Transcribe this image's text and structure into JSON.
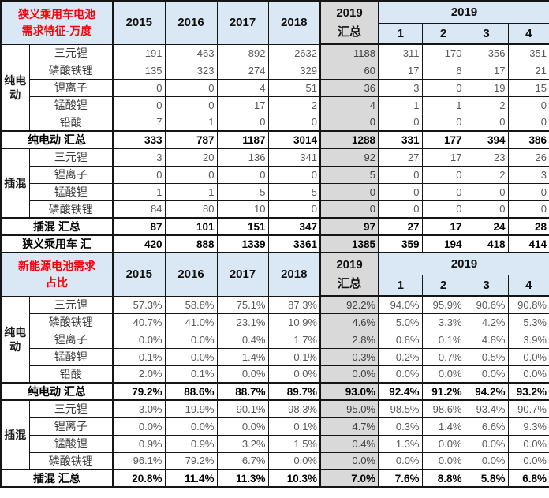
{
  "colors": {
    "header_blue": "#d9e8f4",
    "total_column_gray": "#d9d9d9",
    "title_red": "#fb0007",
    "grid_black": "#151515",
    "number_gray": "#585858"
  },
  "columns": {
    "years": [
      "2015",
      "2016",
      "2017",
      "2018"
    ],
    "total_lines": [
      "2019",
      "汇总"
    ],
    "year_group": "2019",
    "quarters": [
      "1",
      "2",
      "3",
      "4"
    ]
  },
  "chart_data": [
    {
      "type": "table",
      "title": "狭义乘用车电池需求特征-万度",
      "title_lines": [
        "狭义乘用车电池",
        "需求特征-万度"
      ],
      "columns": [
        "2015",
        "2016",
        "2017",
        "2018",
        "2019汇总",
        "2019-1",
        "2019-2",
        "2019-3",
        "2019-4"
      ],
      "blocks": [
        {
          "group": "纯电动",
          "group_lines": [
            "纯电",
            "动"
          ],
          "rows": [
            {
              "label": "三元锂",
              "values": [
                "191",
                "463",
                "892",
                "2632",
                "1188",
                "311",
                "170",
                "356",
                "351"
              ]
            },
            {
              "label": "磷酸铁锂",
              "values": [
                "135",
                "323",
                "274",
                "329",
                "60",
                "17",
                "6",
                "17",
                "21"
              ]
            },
            {
              "label": "锂离子",
              "values": [
                "0",
                "0",
                "4",
                "51",
                "36",
                "3",
                "0",
                "19",
                "15"
              ]
            },
            {
              "label": "锰酸锂",
              "values": [
                "0",
                "0",
                "17",
                "2",
                "4",
                "1",
                "1",
                "2",
                "0"
              ]
            },
            {
              "label": "铅酸",
              "values": [
                "7",
                "1",
                "0",
                "0",
                "0",
                "0",
                "0",
                "0",
                "0"
              ]
            }
          ],
          "summary": {
            "label": "纯电动 汇总",
            "values": [
              "333",
              "787",
              "1187",
              "3014",
              "1288",
              "331",
              "177",
              "394",
              "386"
            ]
          }
        },
        {
          "group": "插混",
          "group_lines": [
            "插混"
          ],
          "rows": [
            {
              "label": "三元锂",
              "values": [
                "3",
                "20",
                "136",
                "341",
                "92",
                "27",
                "17",
                "23",
                "26"
              ]
            },
            {
              "label": "锂离子",
              "values": [
                "0",
                "0",
                "0",
                "0",
                "5",
                "0",
                "0",
                "2",
                "3"
              ]
            },
            {
              "label": "锰酸锂",
              "values": [
                "1",
                "1",
                "5",
                "5",
                "0",
                "0",
                "0",
                "0",
                "0"
              ]
            },
            {
              "label": "磷酸铁锂",
              "values": [
                "84",
                "80",
                "10",
                "0",
                "0",
                "0",
                "0",
                "0",
                "0"
              ]
            }
          ],
          "summary": {
            "label": "插混 汇总",
            "values": [
              "87",
              "101",
              "151",
              "347",
              "97",
              "27",
              "17",
              "24",
              "28"
            ]
          }
        }
      ],
      "grand": {
        "label": "狭义乘用车 汇",
        "values": [
          "420",
          "888",
          "1339",
          "3361",
          "1385",
          "359",
          "194",
          "418",
          "414"
        ]
      }
    },
    {
      "type": "table",
      "title": "新能源电池需求占比",
      "title_lines": [
        "新能源电池需求",
        "占比"
      ],
      "columns": [
        "2015",
        "2016",
        "2017",
        "2018",
        "2019汇总",
        "2019-1",
        "2019-2",
        "2019-3",
        "2019-4"
      ],
      "blocks": [
        {
          "group": "纯电动",
          "group_lines": [
            "纯电",
            "动"
          ],
          "rows": [
            {
              "label": "三元锂",
              "values": [
                "57.3%",
                "58.8%",
                "75.1%",
                "87.3%",
                "92.2%",
                "94.0%",
                "95.9%",
                "90.6%",
                "90.8%"
              ]
            },
            {
              "label": "磷酸铁锂",
              "values": [
                "40.7%",
                "41.0%",
                "23.1%",
                "10.9%",
                "4.6%",
                "5.0%",
                "3.3%",
                "4.2%",
                "5.3%"
              ]
            },
            {
              "label": "锂离子",
              "values": [
                "0.0%",
                "0.0%",
                "0.4%",
                "1.7%",
                "2.8%",
                "0.8%",
                "0.1%",
                "4.8%",
                "3.9%"
              ]
            },
            {
              "label": "锰酸锂",
              "values": [
                "0.1%",
                "0.0%",
                "1.4%",
                "0.1%",
                "0.3%",
                "0.2%",
                "0.7%",
                "0.5%",
                "0.0%"
              ]
            },
            {
              "label": "铅酸",
              "values": [
                "2.0%",
                "0.1%",
                "0.0%",
                "0.0%",
                "0.0%",
                "0.0%",
                "0.0%",
                "0.0%",
                "0.0%"
              ]
            }
          ],
          "summary": {
            "label": "纯电动 汇总",
            "values": [
              "79.2%",
              "88.6%",
              "88.7%",
              "89.7%",
              "93.0%",
              "92.4%",
              "91.2%",
              "94.2%",
              "93.2%"
            ]
          }
        },
        {
          "group": "插混",
          "group_lines": [
            "插混"
          ],
          "rows": [
            {
              "label": "三元锂",
              "values": [
                "3.0%",
                "19.9%",
                "90.1%",
                "98.3%",
                "95.0%",
                "98.5%",
                "98.6%",
                "93.4%",
                "90.7%"
              ]
            },
            {
              "label": "锂离子",
              "values": [
                "0.0%",
                "0.0%",
                "0.0%",
                "0.1%",
                "4.7%",
                "0.3%",
                "1.4%",
                "6.6%",
                "9.3%"
              ]
            },
            {
              "label": "锰酸锂",
              "values": [
                "0.9%",
                "0.9%",
                "3.2%",
                "1.5%",
                "0.4%",
                "1.3%",
                "0.0%",
                "0.0%",
                "0.0%"
              ]
            },
            {
              "label": "磷酸铁锂",
              "values": [
                "96.1%",
                "79.2%",
                "6.7%",
                "0.0%",
                "0.0%",
                "0.0%",
                "0.0%",
                "0.0%",
                "0.0%"
              ]
            }
          ],
          "summary": {
            "label": "插混 汇总",
            "values": [
              "20.8%",
              "11.4%",
              "11.3%",
              "10.3%",
              "7.0%",
              "7.6%",
              "8.8%",
              "5.8%",
              "6.8%"
            ]
          }
        }
      ]
    }
  ]
}
